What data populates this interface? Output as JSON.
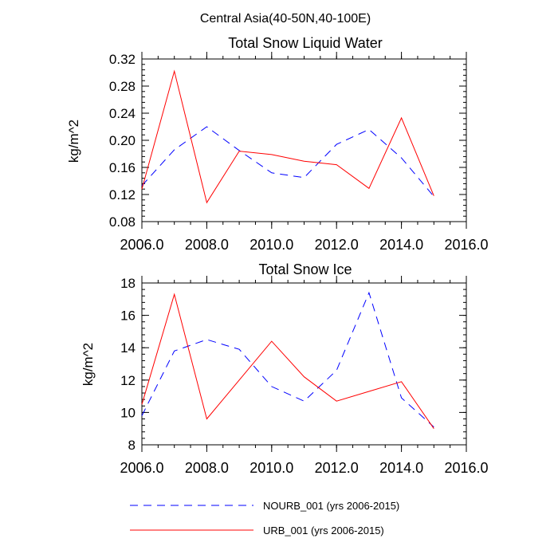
{
  "figure_title": "Central Asia(40-50N,40-100E)",
  "legend": [
    {
      "label": "NOURB_001 (yrs 2006-2015)",
      "color": "#0000ff",
      "style": "dashed"
    },
    {
      "label": "URB_001 (yrs 2006-2015)",
      "color": "#ff0000",
      "style": "solid"
    }
  ],
  "chart_data": [
    {
      "type": "line",
      "title": "Total Snow Liquid Water",
      "xlabel": "",
      "ylabel": "kg/m^2",
      "xlim": [
        2006,
        2016
      ],
      "ylim": [
        0.08,
        0.32
      ],
      "xticks": [
        2006,
        2008,
        2010,
        2012,
        2014,
        2016
      ],
      "xtick_labels": [
        "2006.0",
        "2008.0",
        "2010.0",
        "2012.0",
        "2014.0",
        "2016.0"
      ],
      "yticks": [
        0.08,
        0.12,
        0.16,
        0.2,
        0.24,
        0.28,
        0.32
      ],
      "ytick_labels": [
        "0.08",
        "0.12",
        "0.16",
        "0.20",
        "0.24",
        "0.28",
        "0.32"
      ],
      "x": [
        2006,
        2007,
        2008,
        2009,
        2010,
        2011,
        2012,
        2013,
        2014,
        2015
      ],
      "series": [
        {
          "name": "NOURB_001 (yrs 2006-2015)",
          "color": "#0000ff",
          "dashed": true,
          "values": [
            0.133,
            0.186,
            0.22,
            0.185,
            0.152,
            0.145,
            0.194,
            0.216,
            0.174,
            0.117
          ]
        },
        {
          "name": "URB_001 (yrs 2006-2015)",
          "color": "#ff0000",
          "dashed": false,
          "values": [
            0.128,
            0.302,
            0.108,
            0.184,
            0.179,
            0.169,
            0.164,
            0.129,
            0.233,
            0.118
          ]
        }
      ]
    },
    {
      "type": "line",
      "title": "Total Snow Ice",
      "xlabel": "",
      "ylabel": "kg/m^2",
      "xlim": [
        2006,
        2016
      ],
      "ylim": [
        8,
        18
      ],
      "xticks": [
        2006,
        2008,
        2010,
        2012,
        2014,
        2016
      ],
      "xtick_labels": [
        "2006.0",
        "2008.0",
        "2010.0",
        "2012.0",
        "2014.0",
        "2016.0"
      ],
      "yticks": [
        8,
        10,
        12,
        14,
        16,
        18
      ],
      "ytick_labels": [
        "8",
        "10",
        "12",
        "14",
        "16",
        "18"
      ],
      "x": [
        2006,
        2007,
        2008,
        2009,
        2010,
        2011,
        2012,
        2013,
        2014,
        2015
      ],
      "series": [
        {
          "name": "NOURB_001 (yrs 2006-2015)",
          "color": "#0000ff",
          "dashed": true,
          "values": [
            9.8,
            13.8,
            14.5,
            13.9,
            11.6,
            10.7,
            12.6,
            17.4,
            10.9,
            9.1
          ]
        },
        {
          "name": "URB_001 (yrs 2006-2015)",
          "color": "#ff0000",
          "dashed": false,
          "values": [
            10.5,
            17.3,
            9.6,
            12.0,
            14.4,
            12.2,
            10.7,
            11.3,
            11.9,
            9.0
          ]
        }
      ]
    }
  ]
}
